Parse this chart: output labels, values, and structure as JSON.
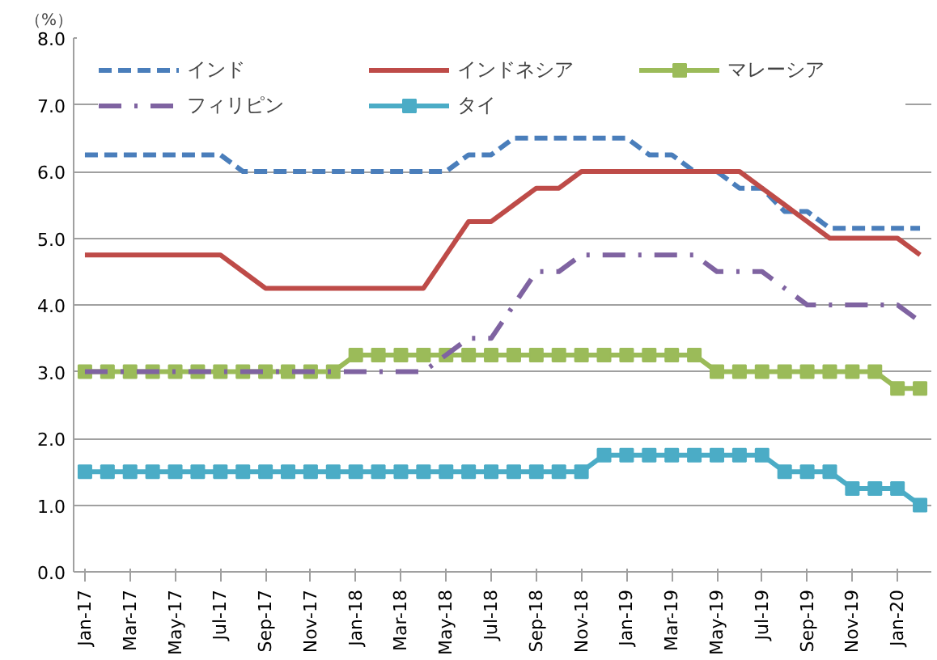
{
  "chart_data": {
    "type": "line",
    "ylabel": "（%）",
    "categories": [
      "Jan-17",
      null,
      "Mar-17",
      null,
      "May-17",
      null,
      "Jul-17",
      null,
      "Sep-17",
      null,
      "Nov-17",
      null,
      "Jan-18",
      null,
      "Mar-18",
      null,
      "May-18",
      null,
      "Jul-18",
      null,
      "Sep-18",
      null,
      "Nov-18",
      null,
      "Jan-19",
      null,
      "Mar-19",
      null,
      "May-19",
      null,
      "Jul-19",
      null,
      "Sep-19",
      null,
      "Nov-19",
      null,
      "Jan-20",
      null
    ],
    "ylim": [
      0,
      8
    ],
    "yticks": [
      {
        "value": 0,
        "label": "0.0"
      },
      {
        "value": 1,
        "label": "1.0"
      },
      {
        "value": 2,
        "label": "2.0"
      },
      {
        "value": 3,
        "label": "3.0"
      },
      {
        "value": 4,
        "label": "4.0"
      },
      {
        "value": 5,
        "label": "5.0"
      },
      {
        "value": 6,
        "label": "6.0"
      },
      {
        "value": 7,
        "label": "7.0"
      },
      {
        "value": 8,
        "label": "8.0"
      }
    ],
    "grid": "y",
    "legend": "top",
    "series": [
      {
        "name": "インド",
        "color": "#4a7ebb",
        "line_style": "dashed",
        "marker": "none",
        "values": [
          6.25,
          6.25,
          6.25,
          6.25,
          6.25,
          6.25,
          6.25,
          6.0,
          6.0,
          6.0,
          6.0,
          6.0,
          6.0,
          6.0,
          6.0,
          6.0,
          6.0,
          6.25,
          6.25,
          6.5,
          6.5,
          6.5,
          6.5,
          6.5,
          6.5,
          6.25,
          6.25,
          6.0,
          6.0,
          5.75,
          5.75,
          5.4,
          5.4,
          5.15,
          5.15,
          5.15,
          5.15,
          5.15
        ]
      },
      {
        "name": "インドネシア",
        "color": "#be4b48",
        "line_style": "solid",
        "marker": "none",
        "values": [
          4.75,
          4.75,
          4.75,
          4.75,
          4.75,
          4.75,
          4.75,
          4.5,
          4.25,
          4.25,
          4.25,
          4.25,
          4.25,
          4.25,
          4.25,
          4.25,
          4.75,
          5.25,
          5.25,
          5.5,
          5.75,
          5.75,
          6.0,
          6.0,
          6.0,
          6.0,
          6.0,
          6.0,
          6.0,
          6.0,
          5.75,
          5.5,
          5.25,
          5.0,
          5.0,
          5.0,
          5.0,
          4.75
        ]
      },
      {
        "name": "マレーシア",
        "color": "#9bbb59",
        "line_style": "solid",
        "marker": "square",
        "values": [
          3.0,
          3.0,
          3.0,
          3.0,
          3.0,
          3.0,
          3.0,
          3.0,
          3.0,
          3.0,
          3.0,
          3.0,
          3.25,
          3.25,
          3.25,
          3.25,
          3.25,
          3.25,
          3.25,
          3.25,
          3.25,
          3.25,
          3.25,
          3.25,
          3.25,
          3.25,
          3.25,
          3.25,
          3.0,
          3.0,
          3.0,
          3.0,
          3.0,
          3.0,
          3.0,
          3.0,
          2.75,
          2.75
        ]
      },
      {
        "name": "フィリピン",
        "color": "#7f63a1",
        "line_style": "dashdot",
        "marker": "none",
        "values": [
          3.0,
          3.0,
          3.0,
          3.0,
          3.0,
          3.0,
          3.0,
          3.0,
          3.0,
          3.0,
          3.0,
          3.0,
          3.0,
          3.0,
          3.0,
          3.0,
          3.25,
          3.5,
          3.5,
          4.0,
          4.5,
          4.5,
          4.75,
          4.75,
          4.75,
          4.75,
          4.75,
          4.75,
          4.5,
          4.5,
          4.5,
          4.25,
          4.0,
          4.0,
          4.0,
          4.0,
          4.0,
          3.75
        ]
      },
      {
        "name": "タイ",
        "color": "#4bacc6",
        "line_style": "solid",
        "marker": "square",
        "values": [
          1.5,
          1.5,
          1.5,
          1.5,
          1.5,
          1.5,
          1.5,
          1.5,
          1.5,
          1.5,
          1.5,
          1.5,
          1.5,
          1.5,
          1.5,
          1.5,
          1.5,
          1.5,
          1.5,
          1.5,
          1.5,
          1.5,
          1.5,
          1.75,
          1.75,
          1.75,
          1.75,
          1.75,
          1.75,
          1.75,
          1.75,
          1.5,
          1.5,
          1.5,
          1.25,
          1.25,
          1.25,
          1.0
        ]
      }
    ]
  }
}
